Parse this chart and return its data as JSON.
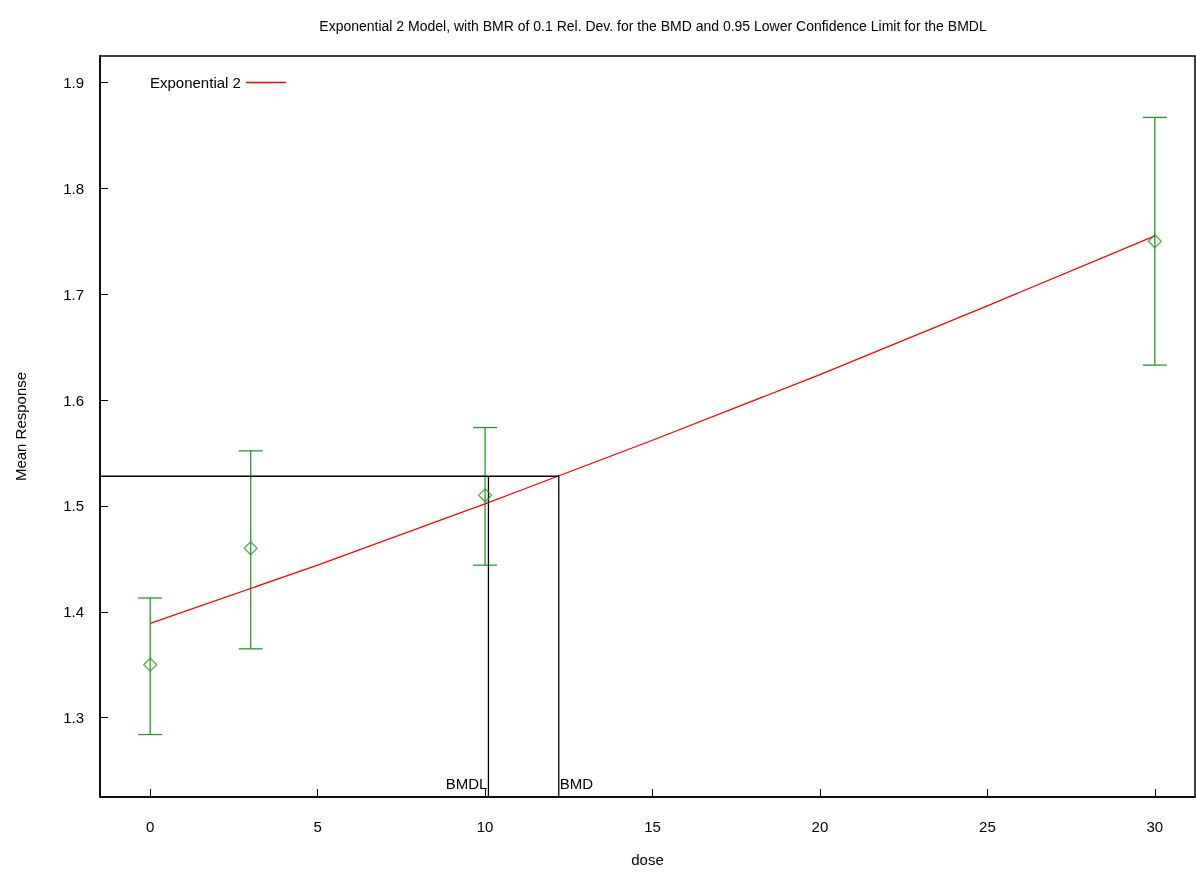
{
  "chart_data": {
    "type": "scatter",
    "title": "Exponential 2 Model, with BMR of 0.1 Rel. Dev. for the BMD and 0.95 Lower Confidence Limit for the BMDL",
    "xlabel": "dose",
    "ylabel": "Mean Response",
    "xlim": [
      -1.5,
      31.2
    ],
    "xticks": [
      0,
      5,
      10,
      15,
      20,
      25,
      30
    ],
    "ylim": [
      1.225,
      1.925
    ],
    "yticks": [
      1.3,
      1.4,
      1.5,
      1.6,
      1.7,
      1.8,
      1.9
    ],
    "grid": false,
    "legend": "top left",
    "series": [
      {
        "type": "scatter",
        "color": "#2a962a",
        "marker": "diamond",
        "x": [
          0,
          3,
          10,
          30
        ],
        "values": [
          1.35,
          1.46,
          1.51,
          1.75
        ],
        "errors": [
          [
            1.284,
            1.413
          ],
          [
            1.365,
            1.552
          ],
          [
            1.444,
            1.574
          ],
          [
            1.633,
            1.867
          ]
        ]
      },
      {
        "type": "line",
        "name": "Exponential 2",
        "color": "#ff0000",
        "marker": "none",
        "x": [
          0,
          5,
          10,
          15,
          20,
          25,
          30
        ],
        "values": [
          1.389,
          1.444,
          1.502,
          1.562,
          1.624,
          1.689,
          1.755
        ]
      },
      {
        "type": "line",
        "color": "#000000",
        "marker": "none",
        "x": [
          -1.5,
          12.2,
          12.2
        ],
        "values": [
          1.528,
          1.528,
          1.225
        ]
      },
      {
        "type": "line",
        "color": "#000000",
        "marker": "none",
        "x": [
          10.1,
          10.1
        ],
        "values": [
          1.528,
          1.225
        ]
      }
    ],
    "annotations": [
      {
        "text": "BMDL",
        "x": 10.1,
        "y": 1.225
      },
      {
        "text": "BMD",
        "x": 12.2,
        "y": 1.225
      }
    ]
  }
}
